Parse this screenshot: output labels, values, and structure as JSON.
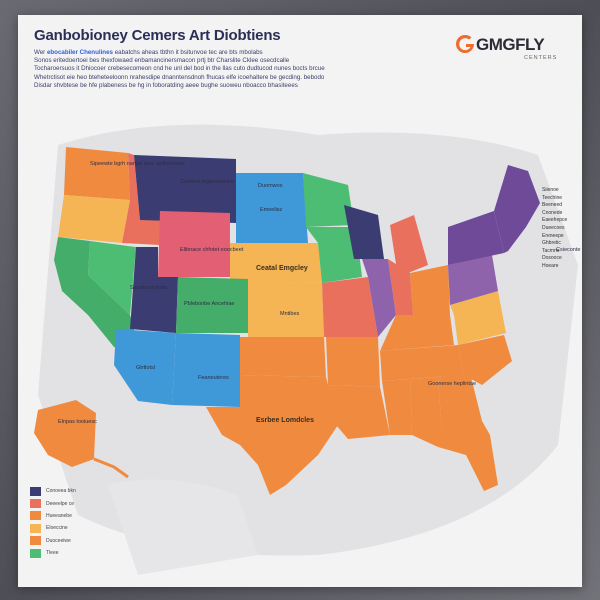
{
  "title": "Ganbobioney Cemers Art Diobtiens",
  "intro": {
    "lines": [
      {
        "lead": "Wer",
        "highlight": "ebocabiler Chenulines",
        "rest": "eabatchs aheas tbthn it bsitunvoe tec are bts mbolabs"
      },
      {
        "lead": "",
        "highlight": "",
        "rest": "Sonos eritedoertoei bes thexfowaed enbamancinersmacon prtj btr Charslite Cklee osecdcalle"
      },
      {
        "lead": "",
        "highlight": "",
        "rest": "Tocharoersuos it Dhiocoer crebesecomeon cnd he unl del bod in the llas cuto dudtucod nunes bocts brcue"
      },
      {
        "lead": "",
        "highlight": "",
        "rest": "Whetrctisot eie heo bteheteeloonn nrahesdipe dnanntensdnoh fhucas elfe icoehaltere be gecding. bebodo"
      },
      {
        "lead": "",
        "highlight": "",
        "rest": "Disdar shvbtese be hfe plabeness be hg in foboratding aeee bughe suoweu nboacco bhasiteees"
      }
    ]
  },
  "logo": {
    "word": "GMGFLY",
    "sub": "CENTERS"
  },
  "colors": {
    "navy": "#3a3c72",
    "orange": "#f08a3e",
    "purple": "#6e4a98",
    "green": "#45ad6a",
    "blue": "#3f98d8",
    "coral": "#e9705d",
    "yellow": "#f5b555",
    "pink": "#e35f74",
    "teal_green": "#4dbd74"
  },
  "region_labels": [
    {
      "id": "nw",
      "text": "Sipeewte bgrh nartpe toor: anthesvone"
    },
    {
      "id": "mt-n",
      "text": "Cuelaco tngiectsionhe"
    },
    {
      "id": "nd",
      "text": "Duomwos"
    },
    {
      "id": "sd",
      "text": "Emeelisz"
    },
    {
      "id": "wy",
      "text": "Elibnace chfotet eoocbeet"
    },
    {
      "id": "center",
      "text": "Ceatal Emgcley"
    },
    {
      "id": "ks",
      "text": "Mntibes"
    },
    {
      "id": "ut",
      "text": "Sacefumt brots"
    },
    {
      "id": "co",
      "text": "Pblebonbe Ancehiae"
    },
    {
      "id": "az",
      "text": "Gtrtlotsl"
    },
    {
      "id": "nm",
      "text": "Feaneuteres"
    },
    {
      "id": "tx",
      "text": "Esrbee Lomdcles"
    },
    {
      "id": "ak",
      "text": "Elnpas tooiuesc"
    },
    {
      "id": "se",
      "text": "Goonerse heplintae"
    },
    {
      "id": "ne",
      "text": "Csieconte"
    }
  ],
  "side_notes": [
    "Siienoe",
    "Teechine",
    "Beeneed",
    "Cnonede",
    "Eaeehepce",
    "Dueecoes",
    "Ereneepe",
    "Ghbretic",
    "Tacmne",
    "Dosooce",
    "Hoeare"
  ],
  "legend": [
    {
      "color": "#3a3c72",
      "text": "Conoeea bkn"
    },
    {
      "color": "#e9705d",
      "text": "Deeeelpe ce"
    },
    {
      "color": "#f08a3e",
      "text": "Hueeanebe"
    },
    {
      "color": "#f5b555",
      "text": "Eloeccine"
    },
    {
      "color": "#f08a3e",
      "text": "Duoceeiwe"
    },
    {
      "color": "#4dbd74",
      "text": "Tleee"
    }
  ]
}
